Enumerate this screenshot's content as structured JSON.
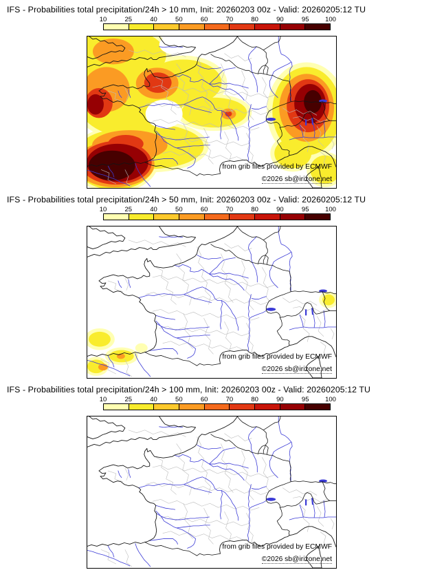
{
  "scale": {
    "ticks": [
      "10",
      "25",
      "40",
      "50",
      "60",
      "70",
      "80",
      "90",
      "95",
      "100"
    ],
    "colors": [
      "#ffffb2",
      "#f9ec2d",
      "#fdc92c",
      "#fb9b23",
      "#f56a1d",
      "#e13813",
      "#c81408",
      "#960003",
      "#470000"
    ]
  },
  "panels": [
    {
      "title": "IFS - Probabilities total precipitation/24h > 10 mm, Init: 20260203 00z - Valid: 20260205:12 TU",
      "credit": "from grib files provided by ECMWF",
      "copyright": "©2026 sb@irizone.net"
    },
    {
      "title": "IFS - Probabilities total precipitation/24h > 50 mm, Init: 20260203 00z - Valid: 20260205:12 TU",
      "credit": "from grib files provided by ECMWF",
      "copyright": "©2026 sb@irizone.net"
    },
    {
      "title": "IFS - Probabilities total precipitation/24h > 100 mm, Init: 20260203 00z - Valid: 20260205:12 TU",
      "credit": "from grib files provided by ECMWF",
      "copyright": "©2026 sb@irizone.net"
    }
  ]
}
